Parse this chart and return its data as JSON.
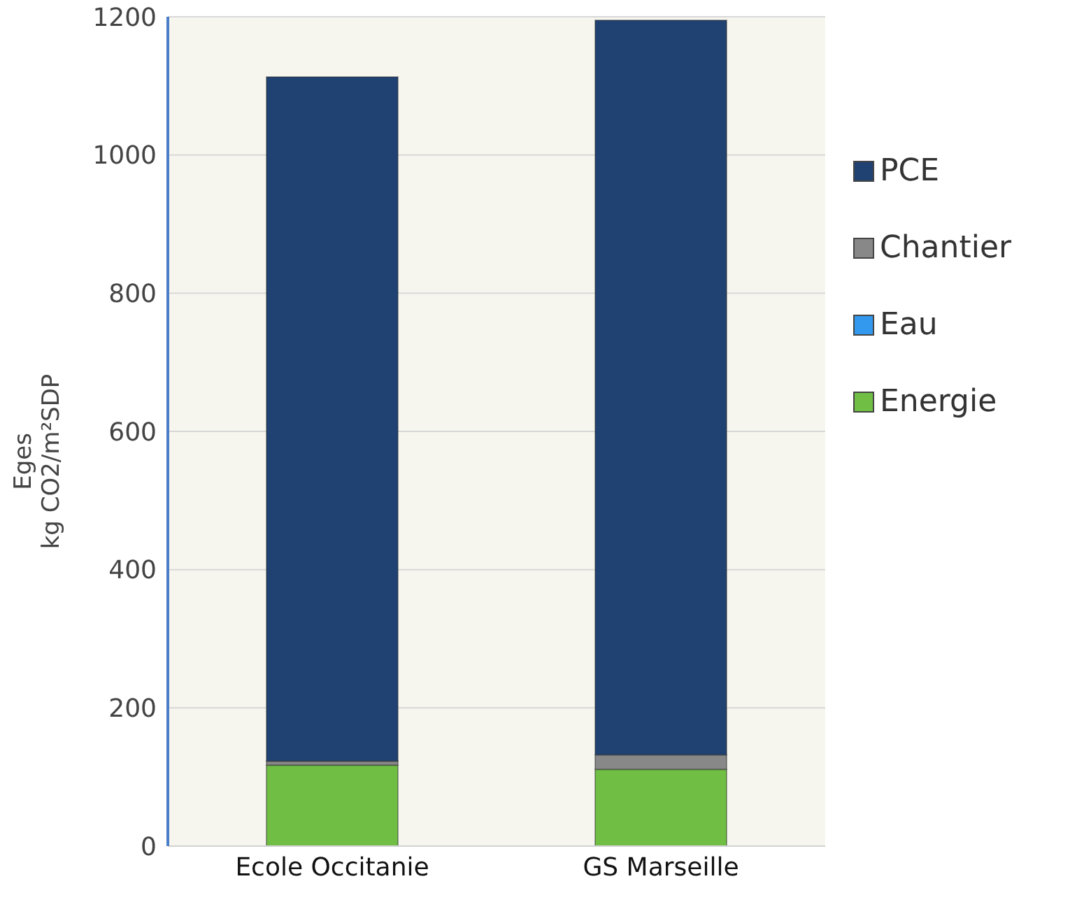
{
  "chart_data": {
    "type": "bar",
    "stacked": true,
    "ylabel": "Eges\nkg CO2/m²SDP",
    "categories": [
      "Ecole Occitanie",
      "GS Marseille"
    ],
    "series": [
      {
        "name": "Energie",
        "color": "#70bf44",
        "values": [
          117,
          111
        ]
      },
      {
        "name": "Eau",
        "color": "#3399ee",
        "values": [
          0,
          0
        ]
      },
      {
        "name": "Chantier",
        "color": "#888888",
        "values": [
          6,
          21
        ]
      },
      {
        "name": "PCE",
        "color": "#1f4272",
        "values": [
          990,
          1063
        ]
      }
    ],
    "ylim": [
      0,
      1200
    ],
    "yticks": [
      0,
      200,
      400,
      600,
      800,
      1000,
      1200
    ],
    "grid": "y",
    "legend": "right"
  }
}
